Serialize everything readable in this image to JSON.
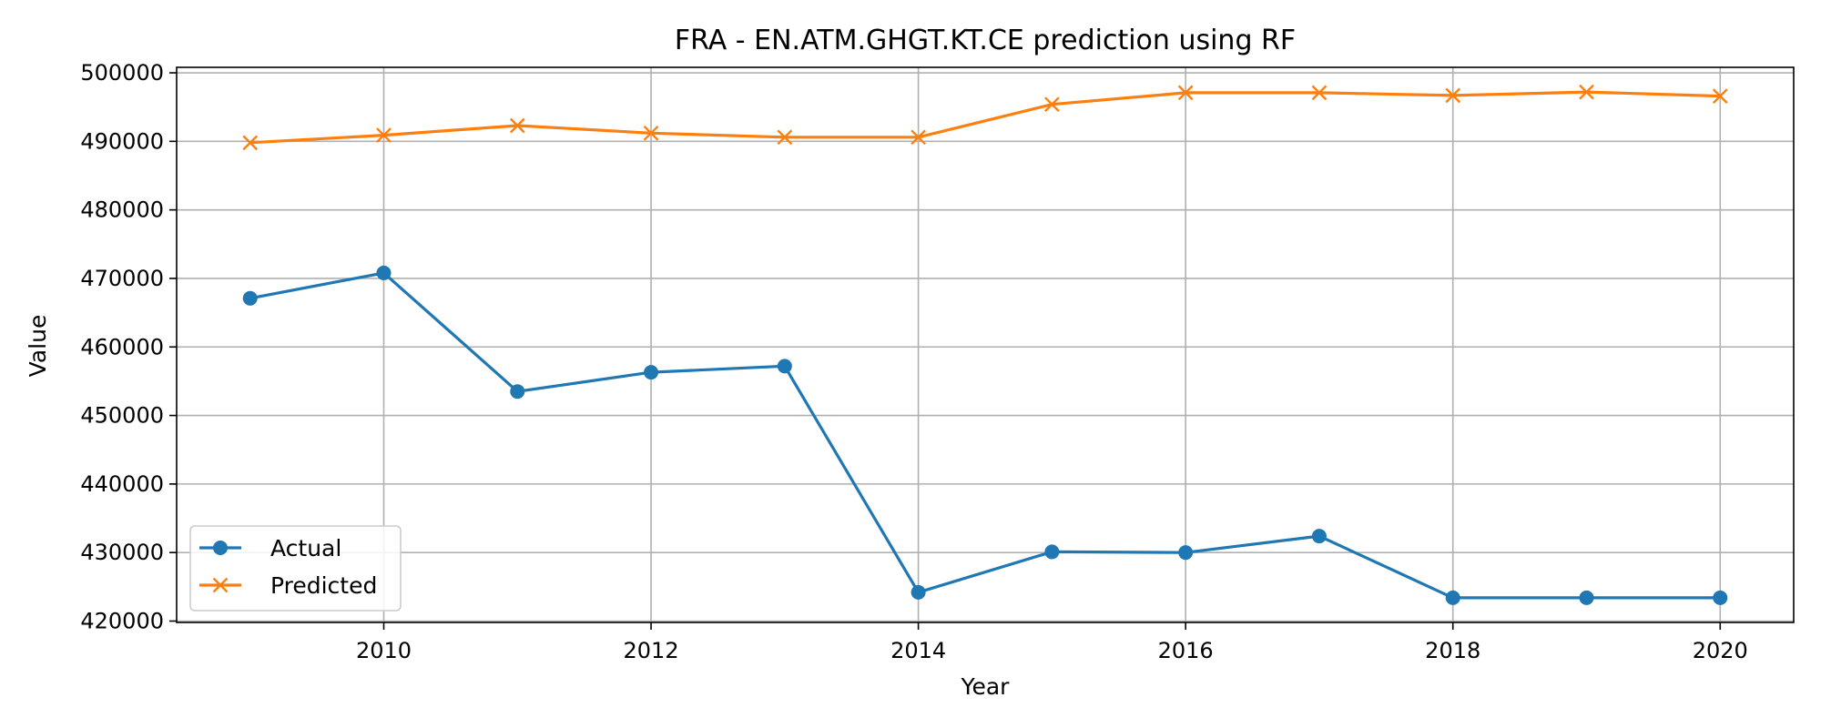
{
  "chart_data": {
    "type": "line",
    "title": "FRA - EN.ATM.GHGT.KT.CE prediction using RF",
    "xlabel": "Year",
    "ylabel": "Value",
    "x": [
      2009,
      2010,
      2011,
      2012,
      2013,
      2014,
      2015,
      2016,
      2017,
      2018,
      2019,
      2020
    ],
    "xlim": [
      2008.45,
      2020.55
    ],
    "ylim": [
      419800,
      500800
    ],
    "xticks": [
      2010,
      2012,
      2014,
      2016,
      2018,
      2020
    ],
    "yticks": [
      420000,
      430000,
      440000,
      450000,
      460000,
      470000,
      480000,
      490000,
      500000
    ],
    "grid": true,
    "legend_position": "lower-left",
    "series": [
      {
        "name": "Actual",
        "color": "#1f77b4",
        "marker": "circle",
        "values": [
          467100,
          470800,
          453500,
          456300,
          457200,
          424200,
          430100,
          430000,
          432400,
          423400,
          423400,
          423400
        ]
      },
      {
        "name": "Predicted",
        "color": "#ff7f0e",
        "marker": "x",
        "values": [
          489800,
          490900,
          492300,
          491200,
          490600,
          490600,
          495400,
          497100,
          497100,
          496700,
          497200,
          496600
        ]
      }
    ]
  }
}
